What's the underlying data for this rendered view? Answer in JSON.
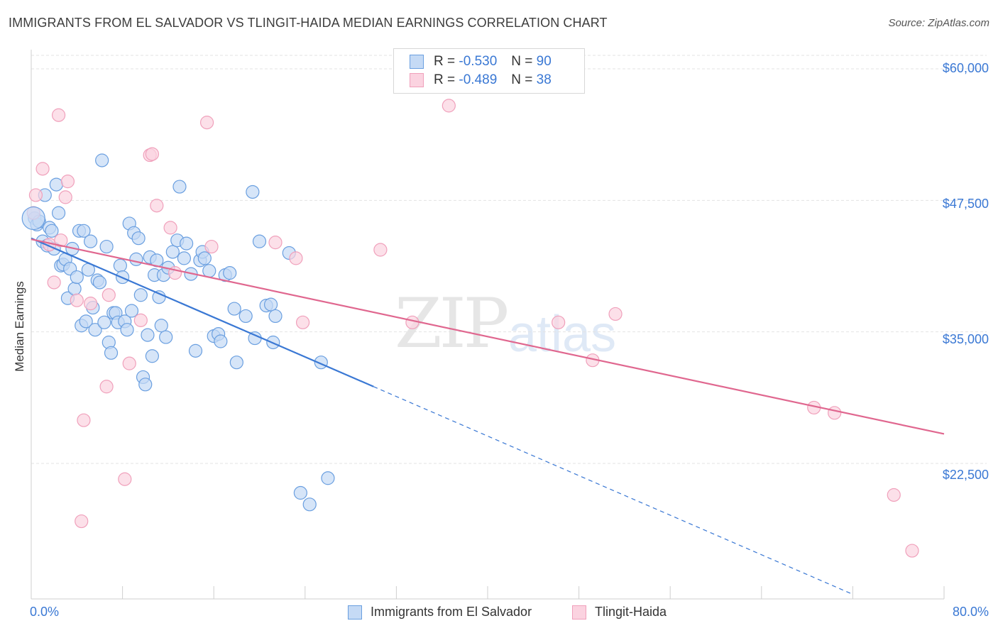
{
  "title": "IMMIGRANTS FROM EL SALVADOR VS TLINGIT-HAIDA MEDIAN EARNINGS CORRELATION CHART",
  "source": "Source: ZipAtlas.com",
  "watermark": {
    "zip": "ZIP",
    "atlas": "atlas"
  },
  "legend": {
    "rows": [
      {
        "r_label": "R =",
        "r_value": "-0.530",
        "n_label": "N =",
        "n_value": "90",
        "color": "#6a9fe0",
        "fill": "#c5daf5"
      },
      {
        "r_label": "R =",
        "r_value": "-0.489",
        "n_label": "N =",
        "n_value": "38",
        "color": "#f0a0bb",
        "fill": "#fbd3e0"
      }
    ]
  },
  "bottom_legend": {
    "series1": "Immigrants from El Salvador",
    "series2": "Tlingit-Haida"
  },
  "x_axis": {
    "min_label": "0.0%",
    "max_label": "80.0%"
  },
  "y_axis": {
    "label": "Median Earnings",
    "ticks": [
      "$60,000",
      "$47,500",
      "$35,000",
      "$22,500"
    ]
  },
  "chart_data": {
    "type": "scatter",
    "title": "IMMIGRANTS FROM EL SALVADOR VS TLINGIT-HAIDA MEDIAN EARNINGS CORRELATION CHART",
    "xlabel": "",
    "ylabel": "Median Earnings",
    "xlim": [
      0,
      80
    ],
    "ylim": [
      12500,
      62500
    ],
    "yticks": [
      22500,
      35000,
      47500,
      60000
    ],
    "grid": true,
    "series": [
      {
        "name": "Immigrants from El Salvador",
        "color": "#3a78d4",
        "fill": "#c5daf5",
        "stroke": "#6a9fe0",
        "trend": {
          "x0": 0,
          "y0": 43900,
          "x1": 30,
          "y1": 29800,
          "dash_to_x": 72
        },
        "points": [
          [
            0.3,
            45.8
          ],
          [
            0.5,
            45.2
          ],
          [
            0.7,
            45.5
          ],
          [
            1.0,
            43.6
          ],
          [
            1.2,
            48.0
          ],
          [
            1.4,
            43.2
          ],
          [
            1.6,
            44.9
          ],
          [
            1.8,
            44.6
          ],
          [
            2.0,
            42.9
          ],
          [
            2.2,
            49.0
          ],
          [
            2.4,
            46.3
          ],
          [
            2.6,
            41.3
          ],
          [
            2.8,
            41.4
          ],
          [
            3.0,
            41.9
          ],
          [
            3.2,
            38.2
          ],
          [
            3.4,
            41.0
          ],
          [
            3.6,
            42.9
          ],
          [
            3.8,
            39.1
          ],
          [
            4.0,
            40.2
          ],
          [
            4.2,
            44.6
          ],
          [
            4.4,
            35.6
          ],
          [
            4.6,
            44.6
          ],
          [
            4.8,
            36.0
          ],
          [
            5.0,
            40.9
          ],
          [
            5.2,
            43.6
          ],
          [
            5.4,
            37.3
          ],
          [
            5.6,
            35.2
          ],
          [
            5.8,
            39.9
          ],
          [
            6.0,
            39.7
          ],
          [
            6.2,
            51.3
          ],
          [
            6.4,
            35.9
          ],
          [
            6.6,
            43.1
          ],
          [
            6.8,
            34.0
          ],
          [
            7.0,
            33.0
          ],
          [
            7.2,
            36.8
          ],
          [
            7.4,
            36.8
          ],
          [
            7.6,
            35.9
          ],
          [
            7.8,
            41.3
          ],
          [
            8.0,
            40.2
          ],
          [
            8.2,
            36.0
          ],
          [
            8.4,
            35.2
          ],
          [
            8.6,
            45.3
          ],
          [
            8.8,
            37.0
          ],
          [
            9.0,
            44.4
          ],
          [
            9.2,
            41.9
          ],
          [
            9.4,
            43.9
          ],
          [
            9.6,
            38.5
          ],
          [
            9.8,
            30.7
          ],
          [
            10.0,
            30.0
          ],
          [
            10.2,
            34.7
          ],
          [
            10.4,
            42.1
          ],
          [
            10.6,
            32.7
          ],
          [
            10.8,
            40.4
          ],
          [
            11.0,
            41.8
          ],
          [
            11.2,
            38.3
          ],
          [
            11.4,
            35.6
          ],
          [
            11.6,
            40.4
          ],
          [
            11.8,
            34.5
          ],
          [
            12.0,
            41.1
          ],
          [
            12.4,
            42.6
          ],
          [
            12.8,
            43.7
          ],
          [
            13.0,
            48.8
          ],
          [
            13.4,
            42.0
          ],
          [
            13.6,
            43.4
          ],
          [
            14.0,
            40.5
          ],
          [
            14.4,
            33.2
          ],
          [
            14.8,
            41.8
          ],
          [
            15.0,
            42.6
          ],
          [
            15.2,
            42.0
          ],
          [
            15.6,
            40.8
          ],
          [
            16.0,
            34.6
          ],
          [
            16.4,
            34.8
          ],
          [
            16.6,
            34.1
          ],
          [
            17.0,
            40.4
          ],
          [
            17.4,
            40.6
          ],
          [
            17.8,
            37.2
          ],
          [
            18.0,
            32.1
          ],
          [
            18.8,
            36.5
          ],
          [
            19.4,
            48.3
          ],
          [
            19.6,
            34.4
          ],
          [
            20.0,
            43.6
          ],
          [
            20.6,
            37.5
          ],
          [
            21.0,
            37.6
          ],
          [
            21.2,
            34.0
          ],
          [
            21.4,
            36.5
          ],
          [
            22.6,
            42.5
          ],
          [
            23.6,
            19.7
          ],
          [
            24.4,
            18.6
          ],
          [
            25.4,
            32.1
          ],
          [
            26.0,
            21.1
          ]
        ]
      },
      {
        "name": "Tlingit-Haida",
        "color": "#e0678f",
        "fill": "#fbd3e0",
        "stroke": "#f0a0bb",
        "trend": {
          "x0": 0,
          "y0": 43800,
          "x1": 80,
          "y1": 25300
        },
        "points": [
          [
            0.2,
            46.3
          ],
          [
            0.4,
            48.0
          ],
          [
            1.0,
            50.5
          ],
          [
            1.6,
            43.3
          ],
          [
            2.0,
            39.7
          ],
          [
            2.4,
            55.6
          ],
          [
            2.6,
            43.7
          ],
          [
            3.0,
            47.8
          ],
          [
            3.2,
            49.3
          ],
          [
            4.0,
            38.0
          ],
          [
            4.4,
            17.0
          ],
          [
            4.6,
            26.6
          ],
          [
            5.2,
            37.7
          ],
          [
            6.6,
            29.8
          ],
          [
            6.8,
            38.5
          ],
          [
            8.2,
            21.0
          ],
          [
            8.6,
            32.0
          ],
          [
            9.6,
            36.1
          ],
          [
            10.4,
            51.8
          ],
          [
            10.6,
            51.9
          ],
          [
            11.0,
            47.0
          ],
          [
            12.2,
            44.9
          ],
          [
            12.6,
            40.6
          ],
          [
            15.4,
            54.9
          ],
          [
            15.8,
            43.1
          ],
          [
            21.4,
            43.5
          ],
          [
            23.2,
            42.0
          ],
          [
            23.8,
            35.9
          ],
          [
            30.6,
            42.8
          ],
          [
            33.4,
            35.9
          ],
          [
            36.6,
            56.5
          ],
          [
            46.2,
            35.9
          ],
          [
            49.2,
            32.3
          ],
          [
            51.2,
            36.7
          ],
          [
            68.6,
            27.8
          ],
          [
            70.4,
            27.3
          ],
          [
            75.6,
            19.5
          ],
          [
            77.2,
            14.2
          ]
        ]
      }
    ]
  }
}
